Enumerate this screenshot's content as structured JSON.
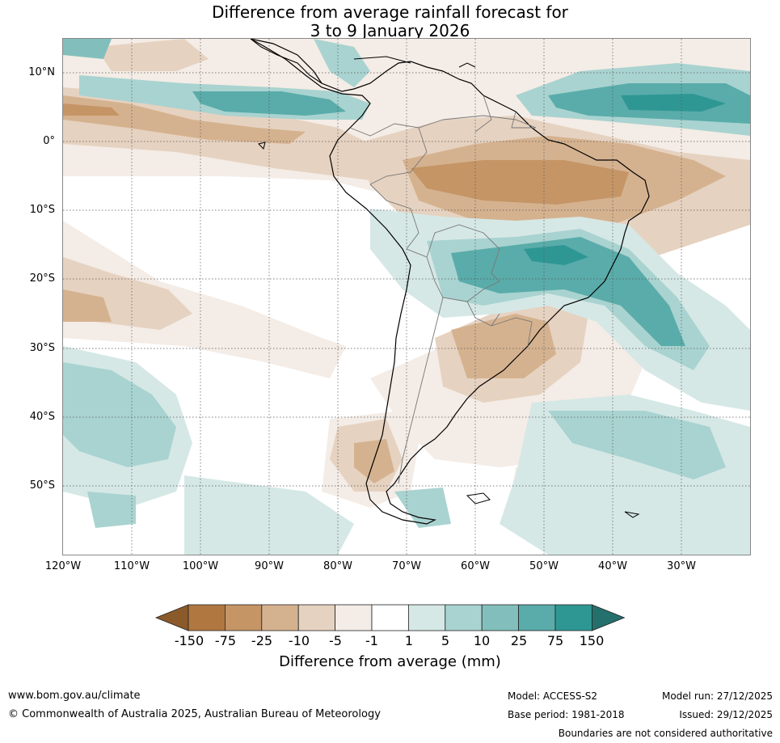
{
  "title": {
    "line1": "Difference from average rainfall forecast for",
    "line2": "3 to 9 January 2026"
  },
  "map": {
    "region": "South America",
    "lat_labels": [
      "10°N",
      "0°",
      "10°S",
      "20°S",
      "30°S",
      "40°S",
      "50°S"
    ],
    "lon_labels": [
      "120°W",
      "110°W",
      "100°W",
      "90°W",
      "80°W",
      "70°W",
      "60°W",
      "50°W",
      "40°W",
      "30°W"
    ]
  },
  "legend": {
    "ticks": [
      "-150",
      "-75",
      "-25",
      "-10",
      "-5",
      "-1",
      "1",
      "5",
      "10",
      "25",
      "75",
      "150"
    ],
    "colors": [
      "#8b5a2b",
      "#b07840",
      "#c59566",
      "#d5b28f",
      "#e6d2c0",
      "#f4ece6",
      "#ffffff",
      "#d5e8e6",
      "#a9d3d0",
      "#82bfbc",
      "#59acaa",
      "#2f9793",
      "#24706d"
    ],
    "title": "Difference from average (mm)"
  },
  "footer": {
    "website": "www.bom.gov.au/climate",
    "copyright": "© Commonwealth of Australia 2025, Australian Bureau of Meteorology",
    "model": "Model: ACCESS-S2",
    "base_period": "Base period: 1981-2018",
    "model_run": "Model run: 27/12/2025",
    "issued": "Issued: 29/12/2025",
    "disclaimer": "Boundaries are not considered authoritative"
  }
}
